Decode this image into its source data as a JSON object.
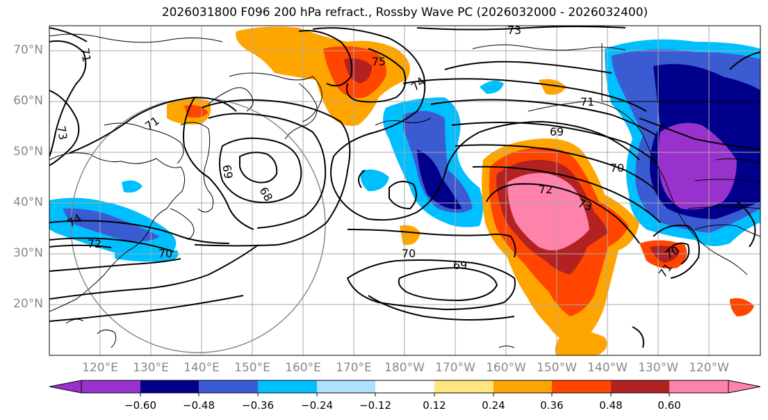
{
  "title": "2026031800 F096 200 hPa refract., Rossby Wave PC (2026032000 - 2026032400)",
  "lat_labels": [
    "70°N",
    "60°N",
    "50°N",
    "40°N",
    "30°N",
    "20°N"
  ],
  "lon_labels": [
    "120°E",
    "130°E",
    "140°E",
    "150°E",
    "160°E",
    "170°E",
    "180°W",
    "170°W",
    "160°W",
    "150°W",
    "140°W",
    "130°W",
    "120°W"
  ],
  "colorbar": {
    "ticks": [
      "−0.60",
      "−0.48",
      "−0.36",
      "−0.24",
      "−0.12",
      "0.12",
      "0.24",
      "0.36",
      "0.48",
      "0.60"
    ],
    "colors": [
      "#9932cc",
      "#00008b",
      "#3b5bd2",
      "#00bfff",
      "#b0e0ff",
      "#ffffff",
      "#ffe680",
      "#ffa500",
      "#ff4500",
      "#b22222",
      "#ff82ab",
      "#ffffff"
    ]
  },
  "contour_labels": [
    "73",
    "71",
    "75",
    "74",
    "71",
    "69",
    "70",
    "72",
    "73",
    "69",
    "68",
    "73",
    "74",
    "72",
    "70",
    "70",
    "69",
    "71",
    "70",
    "71"
  ]
}
